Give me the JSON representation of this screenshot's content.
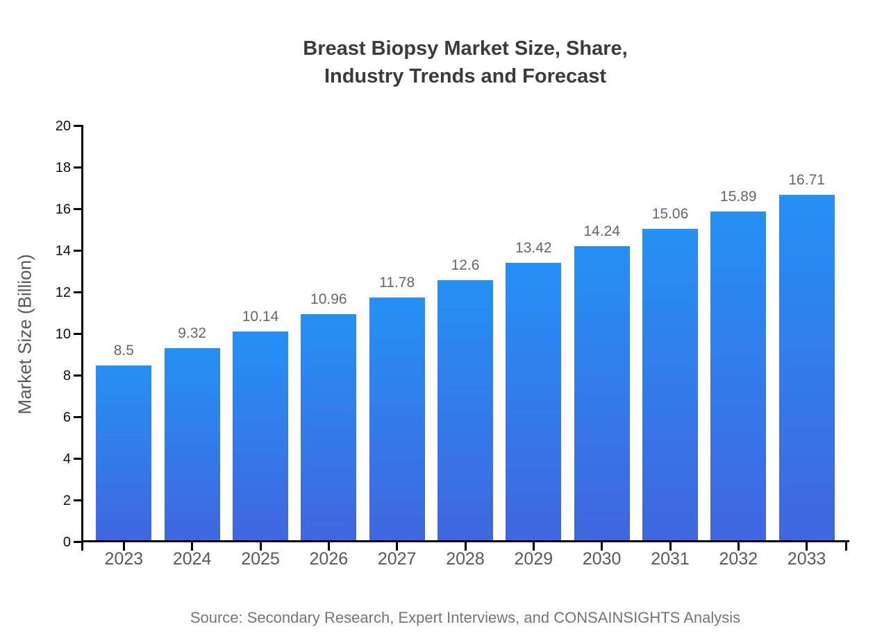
{
  "title": {
    "line1": "Breast Biopsy Market Size, Share,",
    "line2": "Industry Trends and Forecast"
  },
  "footer": {
    "source": "Source: Secondary Research, Expert Interviews, and CONSAINSIGHTS Analysis"
  },
  "chart_data": {
    "type": "bar",
    "title": "Breast Biopsy Market Size, Share, Industry Trends and Forecast",
    "categories": [
      "2023",
      "2024",
      "2025",
      "2026",
      "2027",
      "2028",
      "2029",
      "2030",
      "2031",
      "2032",
      "2033"
    ],
    "values": [
      8.5,
      9.32,
      10.14,
      10.96,
      11.78,
      12.6,
      13.42,
      14.24,
      15.06,
      15.89,
      16.71
    ],
    "value_labels": [
      "8.5",
      "9.32",
      "10.14",
      "10.96",
      "11.78",
      "12.6",
      "13.42",
      "14.24",
      "15.06",
      "15.89",
      "16.71"
    ],
    "xlabel": "",
    "ylabel": "Market Size (Billion)",
    "ylim": [
      0,
      20
    ],
    "yticks": [
      0,
      2,
      4,
      6,
      8,
      10,
      12,
      14,
      16,
      18,
      20
    ],
    "grid": false,
    "legend": null,
    "bar_color_top": "#2590f6",
    "bar_color_bottom": "#4166df",
    "axis_color": "#000000",
    "background_color": "#ffffff"
  }
}
